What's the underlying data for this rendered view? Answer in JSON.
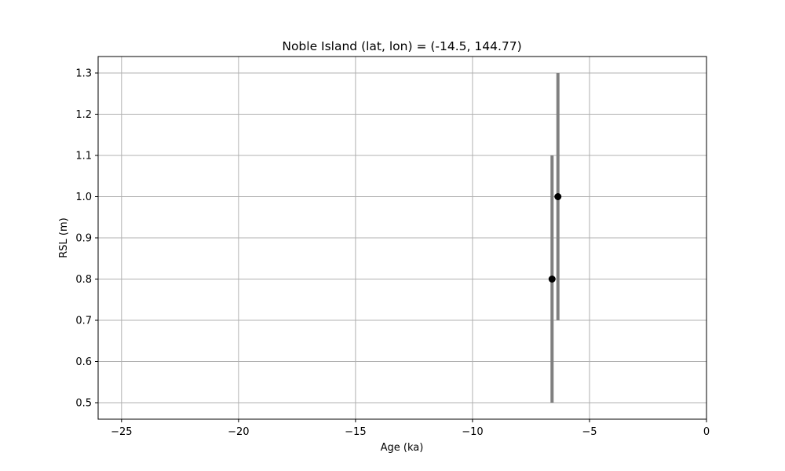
{
  "chart_data": {
    "type": "scatter",
    "title": "Noble Island (lat, lon) = (-14.5, 144.77)",
    "xlabel": "Age (ka)",
    "ylabel": "RSL (m)",
    "xlim": [
      -26,
      0
    ],
    "ylim": [
      0.46,
      1.34
    ],
    "xticks": [
      -25,
      -20,
      -15,
      -10,
      -5,
      0
    ],
    "xtick_labels": [
      "−25",
      "−20",
      "−15",
      "−10",
      "−5",
      "0"
    ],
    "yticks": [
      0.5,
      0.6,
      0.7,
      0.8,
      0.9,
      1.0,
      1.1,
      1.2,
      1.3
    ],
    "ytick_labels": [
      "0.5",
      "0.6",
      "0.7",
      "0.8",
      "0.9",
      "1.0",
      "1.1",
      "1.2",
      "1.3"
    ],
    "grid": true,
    "colors": {
      "marker": "#000000",
      "errorbar": "#808080",
      "grid": "#b0b0b0"
    },
    "points": [
      {
        "x": -6.6,
        "y": 0.8,
        "ylow": 0.5,
        "yhigh": 1.1
      },
      {
        "x": -6.35,
        "y": 1.0,
        "ylow": 0.7,
        "yhigh": 1.3
      }
    ]
  }
}
